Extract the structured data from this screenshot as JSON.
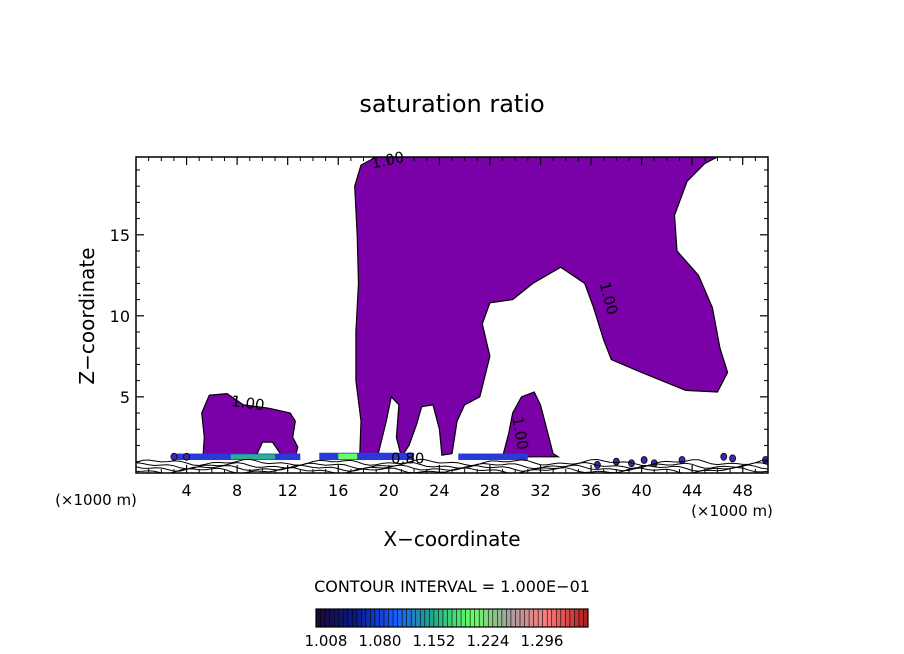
{
  "chart_data": {
    "type": "contour",
    "title": "saturation ratio",
    "xlabel": "X−coordinate",
    "ylabel": "Z−coordinate",
    "x_unit_left": "(×1000 m)",
    "x_unit_right": "(×1000 m)",
    "xlim": [
      0,
      50
    ],
    "ylim": [
      0.3,
      19.8
    ],
    "x_ticks": [
      4,
      8,
      12,
      16,
      20,
      24,
      28,
      32,
      36,
      40,
      44,
      48
    ],
    "y_ticks": [
      5,
      10,
      15
    ],
    "x_tick_labels": [
      "4",
      "8",
      "12",
      "16",
      "20",
      "24",
      "28",
      "32",
      "36",
      "40",
      "44",
      "48"
    ],
    "y_tick_labels": [
      "5",
      "10",
      "15"
    ],
    "contour_interval_text": "CONTOUR INTERVAL = 1.000E−01",
    "contour_labels": [
      {
        "text": "1.00",
        "x": 20.0,
        "y": 19.3,
        "angle": -12
      },
      {
        "text": "1.00",
        "x": 8.8,
        "y": 4.3,
        "angle": 8
      },
      {
        "text": "1.00",
        "x": 37.0,
        "y": 11.0,
        "angle": 75
      },
      {
        "text": "1.00",
        "x": 30.0,
        "y": 2.7,
        "angle": 80
      },
      {
        "text": "0.80",
        "x": 21.5,
        "y": 0.9,
        "angle": 0
      }
    ],
    "colorbar": {
      "tick_labels": [
        "1.008",
        "1.080",
        "1.152",
        "1.224",
        "1.296"
      ],
      "range": [
        1.008,
        1.36
      ],
      "colors": [
        "#1a0a3a",
        "#0a1a8a",
        "#1a5aff",
        "#22aa88",
        "#66ff66",
        "#a8a0a0",
        "#ff7a7a",
        "#b02020"
      ]
    },
    "fill_color": "#7a00a8",
    "supersaturated_regions": [
      {
        "name": "main-cloud",
        "points": [
          [
            17.7,
            1.3
          ],
          [
            17.8,
            3.5
          ],
          [
            17.4,
            6.0
          ],
          [
            17.4,
            9.0
          ],
          [
            17.6,
            12.0
          ],
          [
            17.5,
            15.0
          ],
          [
            17.3,
            18.0
          ],
          [
            17.8,
            19.3
          ],
          [
            19.0,
            19.8
          ],
          [
            46.0,
            19.8
          ],
          [
            45.0,
            19.4
          ],
          [
            43.6,
            18.3
          ],
          [
            42.6,
            16.2
          ],
          [
            42.8,
            14.0
          ],
          [
            44.5,
            12.5
          ],
          [
            45.6,
            10.5
          ],
          [
            46.2,
            8.0
          ],
          [
            46.8,
            6.5
          ],
          [
            46.0,
            5.3
          ],
          [
            43.5,
            5.4
          ],
          [
            40.0,
            6.5
          ],
          [
            37.6,
            7.3
          ],
          [
            37.0,
            8.5
          ],
          [
            36.2,
            10.5
          ],
          [
            35.5,
            12.0
          ],
          [
            33.6,
            13.0
          ],
          [
            31.4,
            12.0
          ],
          [
            29.8,
            11.0
          ],
          [
            28.0,
            10.8
          ],
          [
            27.4,
            9.5
          ],
          [
            28.0,
            7.5
          ],
          [
            27.2,
            5.0
          ],
          [
            26.0,
            4.5
          ],
          [
            25.4,
            3.5
          ],
          [
            25.0,
            1.5
          ],
          [
            24.2,
            1.4
          ],
          [
            24.0,
            3.0
          ],
          [
            23.5,
            4.5
          ],
          [
            22.6,
            4.4
          ],
          [
            22.2,
            3.3
          ],
          [
            21.6,
            2.0
          ],
          [
            21.0,
            1.3
          ],
          [
            20.6,
            2.5
          ],
          [
            20.8,
            4.5
          ],
          [
            20.2,
            5.0
          ],
          [
            19.8,
            3.5
          ],
          [
            19.2,
            1.6
          ],
          [
            18.8,
            1.3
          ]
        ]
      },
      {
        "name": "left-cloud",
        "points": [
          [
            5.3,
            1.3
          ],
          [
            5.4,
            2.5
          ],
          [
            5.2,
            4.0
          ],
          [
            5.8,
            5.1
          ],
          [
            7.2,
            5.2
          ],
          [
            8.5,
            4.5
          ],
          [
            10.5,
            4.3
          ],
          [
            12.2,
            4.0
          ],
          [
            12.6,
            3.5
          ],
          [
            12.4,
            2.5
          ],
          [
            12.8,
            1.9
          ],
          [
            12.6,
            1.3
          ],
          [
            11.5,
            1.4
          ],
          [
            10.8,
            2.2
          ],
          [
            10.0,
            2.2
          ],
          [
            9.6,
            1.5
          ],
          [
            8.5,
            1.4
          ]
        ]
      },
      {
        "name": "small-cloud",
        "points": [
          [
            29.0,
            1.3
          ],
          [
            29.5,
            2.8
          ],
          [
            29.8,
            4.0
          ],
          [
            30.5,
            5.0
          ],
          [
            31.5,
            5.3
          ],
          [
            32.0,
            4.5
          ],
          [
            32.5,
            3.0
          ],
          [
            33.0,
            1.5
          ],
          [
            33.4,
            1.3
          ]
        ]
      }
    ],
    "near_surface_bands": [
      {
        "x0": 3.0,
        "x1": 13.0,
        "y0": 1.1,
        "y1": 1.5,
        "color": "#2a3ad8"
      },
      {
        "x0": 7.5,
        "x1": 11.0,
        "y0": 1.15,
        "y1": 1.45,
        "color": "#2ab090"
      },
      {
        "x0": 14.5,
        "x1": 22.0,
        "y0": 1.1,
        "y1": 1.55,
        "color": "#2a3ad8"
      },
      {
        "x0": 16.0,
        "x1": 17.5,
        "y0": 1.15,
        "y1": 1.5,
        "color": "#66ff66"
      },
      {
        "x0": 25.5,
        "x1": 31.0,
        "y0": 1.1,
        "y1": 1.5,
        "color": "#2a3ad8"
      }
    ],
    "low_contour_levels": [
      0.95,
      0.75,
      0.6,
      0.45
    ]
  }
}
